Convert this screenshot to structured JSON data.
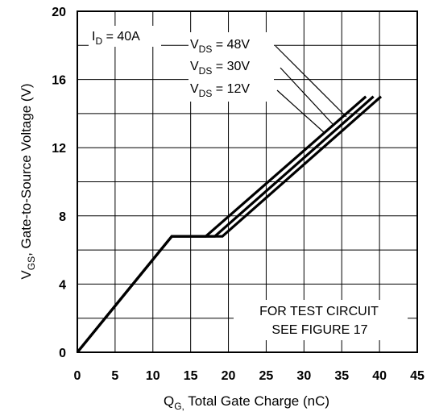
{
  "chart_data": {
    "type": "line",
    "xlabel": {
      "main": "Q",
      "sub": "G,",
      "rest": " Total Gate Charge (nC)"
    },
    "ylabel": {
      "main": "V",
      "sub": "GS",
      "rest": ", Gate-to-Source Voltage (V)"
    },
    "xlim": [
      0,
      45
    ],
    "ylim": [
      0,
      20
    ],
    "x_ticks": [
      0,
      5,
      10,
      15,
      20,
      25,
      30,
      35,
      40,
      45
    ],
    "y_ticks": [
      0,
      4,
      8,
      12,
      16,
      20
    ],
    "grid": true,
    "annotations": {
      "id_label": {
        "main": "I",
        "sub": "D",
        "rest": " = 40A"
      },
      "test_circuit_line1": "FOR TEST CIRCUIT",
      "test_circuit_line2": "SEE FIGURE 17"
    },
    "series": [
      {
        "name": {
          "main": "V",
          "sub": "DS",
          "rest": " = 48V"
        },
        "x": [
          0,
          12.5,
          17,
          38.2
        ],
        "y": [
          0,
          6.8,
          6.8,
          15
        ]
      },
      {
        "name": {
          "main": "V",
          "sub": "DS",
          "rest": " = 30V"
        },
        "x": [
          0,
          12.5,
          18.2,
          39.2
        ],
        "y": [
          0,
          6.8,
          6.8,
          15
        ]
      },
      {
        "name": {
          "main": "V",
          "sub": "DS",
          "rest": " = 12V"
        },
        "x": [
          0,
          12.5,
          19.2,
          40.2
        ],
        "y": [
          0,
          6.8,
          6.8,
          15
        ]
      }
    ]
  }
}
